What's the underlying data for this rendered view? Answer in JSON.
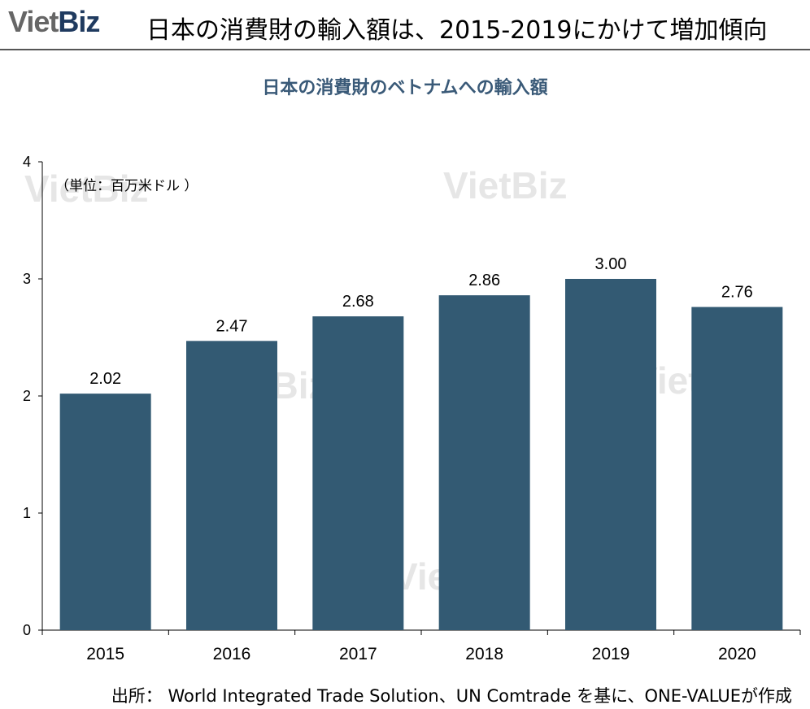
{
  "header": {
    "logo_part1": "Viet",
    "logo_part2": "Biz",
    "headline": "日本の消費財の輸入額は、2015-2019にかけて増加傾向"
  },
  "watermark": "VietBiz",
  "colors": {
    "bar": "#335a73",
    "axis": "#000000",
    "title": "#3a5a78"
  },
  "chart_data": {
    "type": "bar",
    "title": "日本の消費財のベトナムへの輸入額",
    "unit_label": "（単位：百万米ドル ）",
    "categories": [
      "2015",
      "2016",
      "2017",
      "2018",
      "2019",
      "2020"
    ],
    "values": [
      2.02,
      2.47,
      2.68,
      2.86,
      3.0,
      2.76
    ],
    "data_labels": [
      "2.02",
      "2.47",
      "2.68",
      "2.86",
      "3.00",
      "2.76"
    ],
    "y_ticks": [
      "0",
      "1",
      "2",
      "3",
      "4"
    ],
    "ylim": [
      0,
      4
    ],
    "grid": false,
    "legend": "none"
  },
  "source": "出所： World Integrated Trade Solution、UN Comtrade を基に、ONE-VALUEが作成"
}
